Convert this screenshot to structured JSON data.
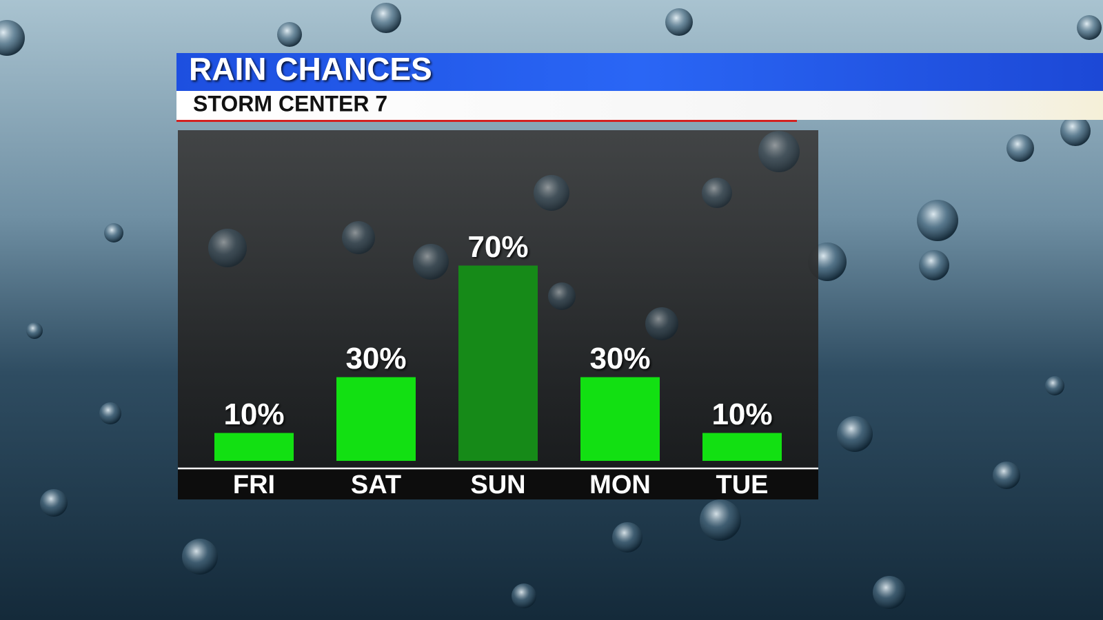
{
  "chart_data": {
    "type": "bar",
    "title": "RAIN CHANCES",
    "subtitle": "STORM CENTER 7",
    "categories": [
      "FRI",
      "SAT",
      "SUN",
      "MON",
      "TUE"
    ],
    "values": [
      10,
      30,
      70,
      30,
      10
    ],
    "value_labels": [
      "10%",
      "30%",
      "70%",
      "30%",
      "10%"
    ],
    "colors": [
      "#12e012",
      "#12e012",
      "#168a18",
      "#12e012",
      "#12e012"
    ]
  }
}
